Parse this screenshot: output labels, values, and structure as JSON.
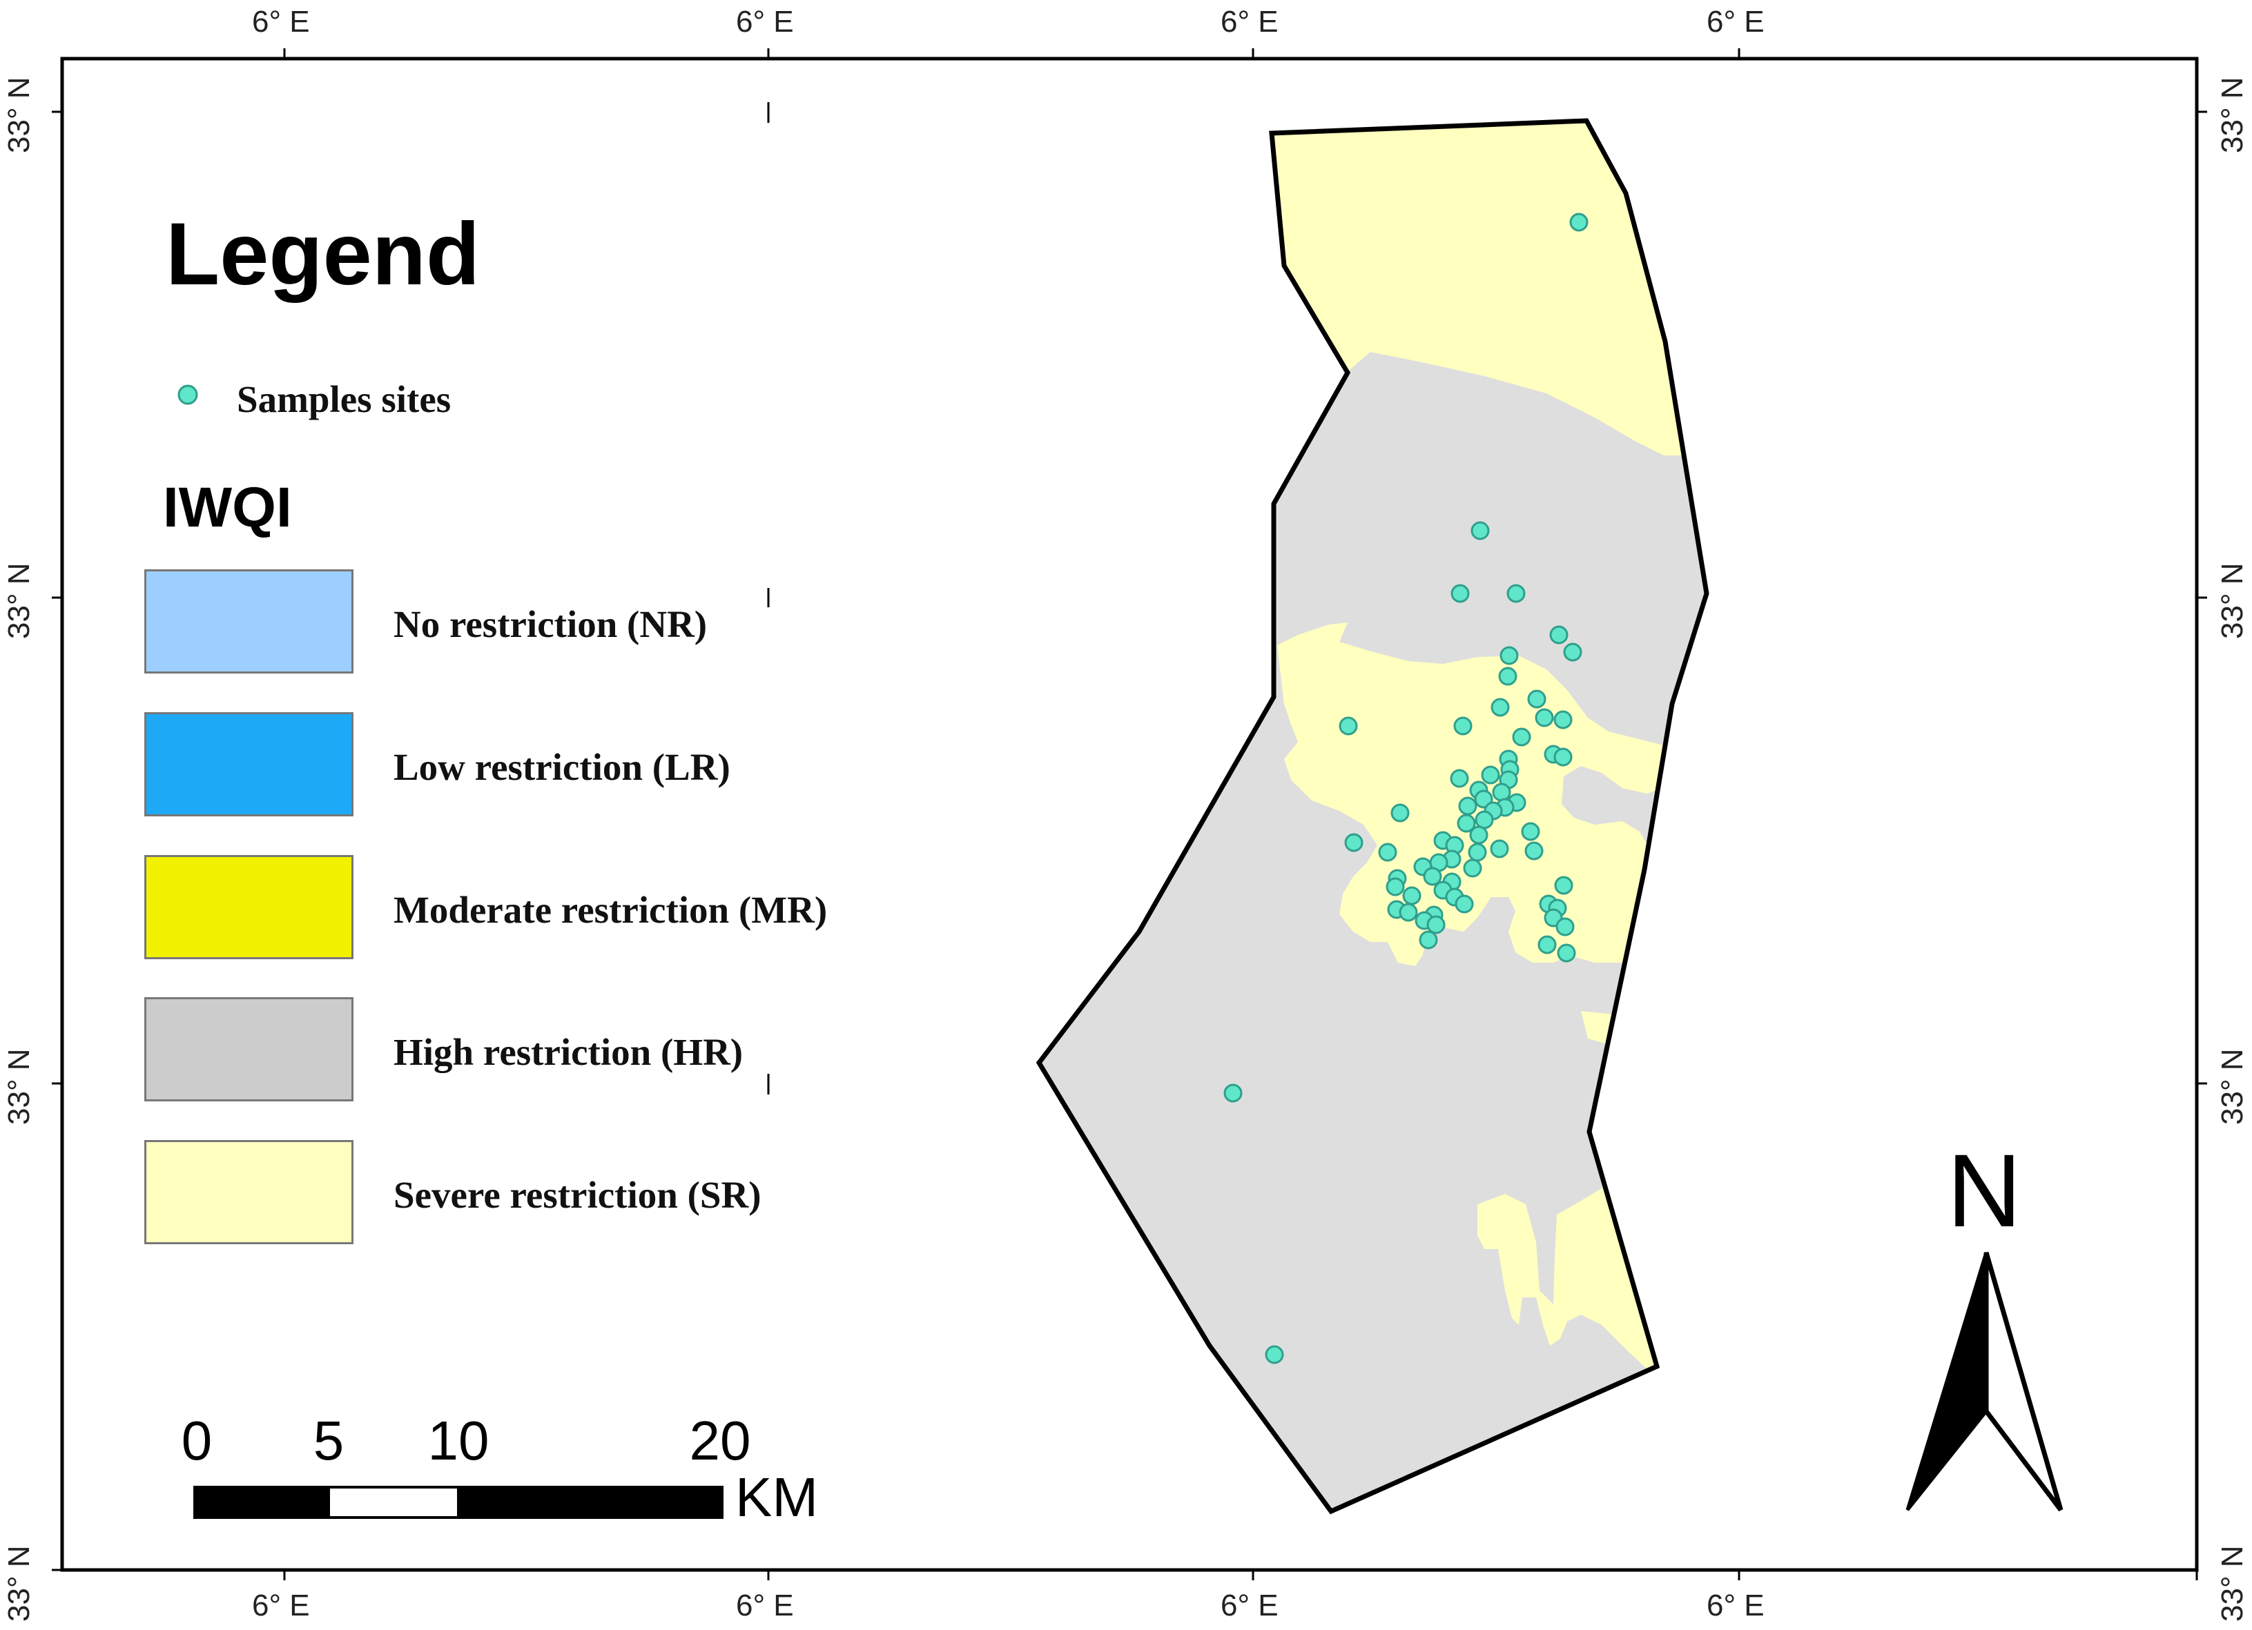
{
  "coordinates": {
    "top_lon": [
      "6° E",
      "6° E",
      "6° E",
      "6° E"
    ],
    "bottom_lon": [
      "6° E",
      "6° E",
      "6° E",
      "6° E"
    ],
    "left_lat": [
      "33° N",
      "33° N",
      "33° N",
      "33° N"
    ],
    "right_lat": [
      "33° N",
      "33° N",
      "33° N",
      "33° N"
    ]
  },
  "legend": {
    "title": "Legend",
    "samples_label": "Samples sites",
    "iwqi_title": "IWQI",
    "classes": [
      {
        "label": "No restriction (NR)",
        "color": "#9ccfff"
      },
      {
        "label": "Low restriction (LR)",
        "color": "#1ea9f6"
      },
      {
        "label": "Moderate restriction (MR)",
        "color": "#f2f200"
      },
      {
        "label": "High restriction (HR)",
        "color": "#cccccc"
      },
      {
        "label": "Severe restriction (SR)",
        "color": "#ffffc0"
      }
    ],
    "sample_color": "#60e6c8"
  },
  "map_colors": {
    "high_restriction_area": "#dedede",
    "severe_restriction_area": "#ffffc0",
    "boundary": "#000000"
  },
  "scale_bar": {
    "ticks": [
      "0",
      "5",
      "10",
      "20"
    ],
    "unit": "KM"
  },
  "north_arrow": {
    "label": "N"
  }
}
